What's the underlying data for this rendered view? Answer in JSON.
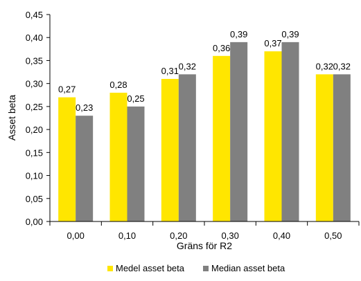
{
  "chart_data": {
    "type": "bar",
    "title": "",
    "xlabel": "Gräns för R2",
    "ylabel": "Asset beta",
    "categories": [
      "0,00",
      "0,10",
      "0,20",
      "0,30",
      "0,40",
      "0,50"
    ],
    "ylim": [
      0,
      0.45
    ],
    "yticks": [
      "0,00",
      "0,05",
      "0,10",
      "0,15",
      "0,20",
      "0,25",
      "0,30",
      "0,35",
      "0,40",
      "0,45"
    ],
    "grid": false,
    "legend_position": "bottom",
    "series": [
      {
        "name": "Medel asset beta",
        "color": "#FFE600",
        "values": [
          0.27,
          0.28,
          0.31,
          0.36,
          0.37,
          0.32
        ],
        "labels": [
          "0,27",
          "0,28",
          "0,31",
          "0,36",
          "0,37",
          "0,32"
        ]
      },
      {
        "name": "Median asset beta",
        "color": "#808080",
        "values": [
          0.23,
          0.25,
          0.32,
          0.39,
          0.39,
          0.32
        ],
        "labels": [
          "0,23",
          "0,25",
          "0,32",
          "0,39",
          "0,39",
          "0,32"
        ]
      }
    ]
  }
}
